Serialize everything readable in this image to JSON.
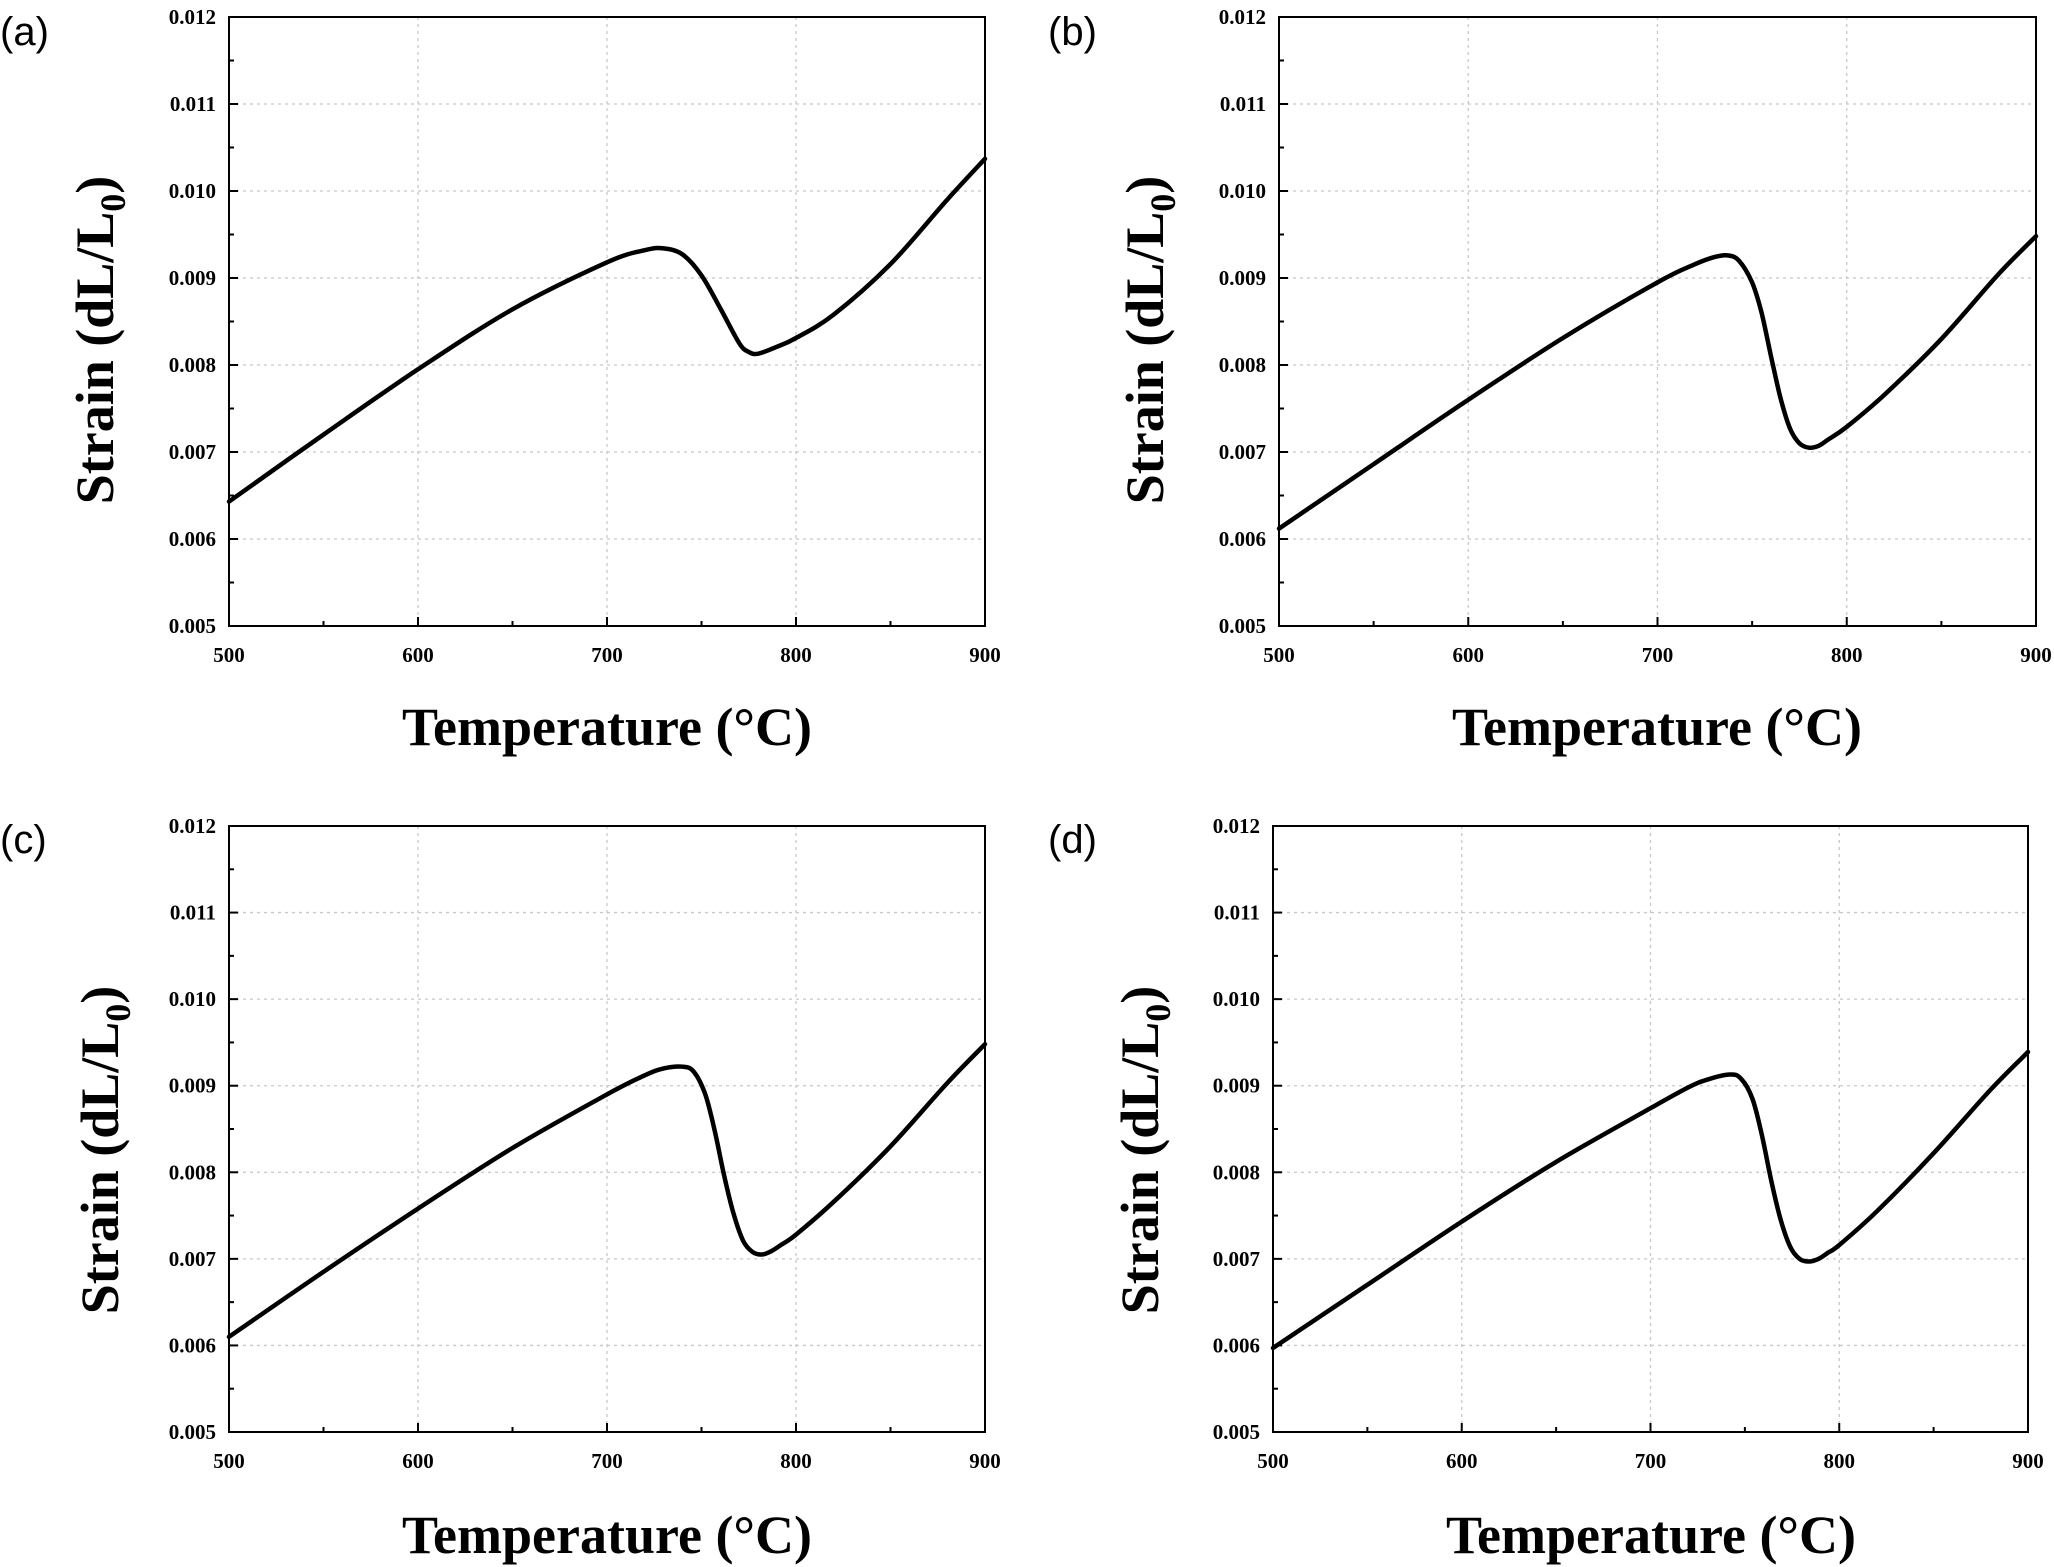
{
  "chart_data": [
    {
      "panel": "(a)",
      "type": "line",
      "xlabel": "Temperature (°C)",
      "ylabel": "Strain (dL/L",
      "ylabel_sub": "0",
      "ylabel_end": ")",
      "xlim": [
        500,
        900
      ],
      "ylim": [
        0.005,
        0.012
      ],
      "xticks": [
        "500",
        "600",
        "700",
        "800",
        "900"
      ],
      "yticks": [
        "0.005",
        "0.006",
        "0.007",
        "0.008",
        "0.009",
        "0.010",
        "0.011",
        "0.012"
      ],
      "grid": true,
      "x": [
        500,
        550,
        600,
        650,
        700,
        720,
        730,
        740,
        750,
        760,
        770,
        775,
        780,
        790,
        800,
        820,
        850,
        880,
        900
      ],
      "y": [
        0.00643,
        0.0072,
        0.00795,
        0.00864,
        0.00918,
        0.00932,
        0.00934,
        0.00927,
        0.00903,
        0.00865,
        0.00825,
        0.00815,
        0.00813,
        0.00821,
        0.00831,
        0.00858,
        0.00916,
        0.0099,
        0.01037
      ]
    },
    {
      "panel": "(b)",
      "type": "line",
      "xlabel": "Temperature (°C)",
      "ylabel": "Strain (dL/L",
      "ylabel_sub": "0",
      "ylabel_end": ")",
      "xlim": [
        500,
        900
      ],
      "ylim": [
        0.005,
        0.012
      ],
      "xticks": [
        "500",
        "600",
        "700",
        "800",
        "900"
      ],
      "yticks": [
        "0.005",
        "0.006",
        "0.007",
        "0.008",
        "0.009",
        "0.010",
        "0.011",
        "0.012"
      ],
      "grid": true,
      "x": [
        500,
        550,
        600,
        650,
        700,
        720,
        730,
        737,
        743,
        750,
        755,
        760,
        765,
        770,
        775,
        780,
        785,
        790,
        800,
        820,
        850,
        880,
        900
      ],
      "y": [
        0.00612,
        0.00686,
        0.0076,
        0.00831,
        0.00895,
        0.00916,
        0.00924,
        0.00926,
        0.0092,
        0.00895,
        0.0086,
        0.0081,
        0.00762,
        0.00727,
        0.0071,
        0.00705,
        0.00707,
        0.00714,
        0.00729,
        0.00766,
        0.0083,
        0.00904,
        0.00948
      ]
    },
    {
      "panel": "(c)",
      "type": "line",
      "xlabel": "Temperature (°C)",
      "ylabel": "Strain (dL/L",
      "ylabel_sub": "0",
      "ylabel_end": ")",
      "xlim": [
        500,
        900
      ],
      "ylim": [
        0.005,
        0.012
      ],
      "xticks": [
        "500",
        "600",
        "700",
        "800",
        "900"
      ],
      "yticks": [
        "0.005",
        "0.006",
        "0.007",
        "0.008",
        "0.009",
        "0.010",
        "0.011",
        "0.012"
      ],
      "grid": true,
      "x": [
        500,
        550,
        600,
        650,
        700,
        720,
        730,
        740,
        746,
        752,
        757,
        762,
        767,
        772,
        777,
        782,
        787,
        792,
        800,
        820,
        850,
        880,
        900
      ],
      "y": [
        0.0061,
        0.00685,
        0.00758,
        0.00828,
        0.0089,
        0.00912,
        0.0092,
        0.00922,
        0.00916,
        0.0089,
        0.00848,
        0.00796,
        0.00752,
        0.00721,
        0.00708,
        0.00705,
        0.00709,
        0.00716,
        0.00728,
        0.00766,
        0.0083,
        0.00903,
        0.00948
      ]
    },
    {
      "panel": "(d)",
      "type": "line",
      "xlabel": "Temperature (°C)",
      "ylabel": "Strain (dL/L",
      "ylabel_sub": "0",
      "ylabel_end": ")",
      "xlim": [
        500,
        900
      ],
      "ylim": [
        0.005,
        0.012
      ],
      "xticks": [
        "500",
        "600",
        "700",
        "800",
        "900"
      ],
      "yticks": [
        "0.005",
        "0.006",
        "0.007",
        "0.008",
        "0.009",
        "0.010",
        "0.011",
        "0.012"
      ],
      "grid": true,
      "x": [
        500,
        550,
        600,
        650,
        700,
        720,
        730,
        742,
        748,
        754,
        759,
        764,
        769,
        774,
        779,
        784,
        789,
        794,
        800,
        820,
        850,
        880,
        900
      ],
      "y": [
        0.00597,
        0.0067,
        0.00743,
        0.00812,
        0.00874,
        0.00898,
        0.00907,
        0.00913,
        0.00908,
        0.00885,
        0.00843,
        0.0079,
        0.00745,
        0.00714,
        0.007,
        0.00697,
        0.007,
        0.00707,
        0.00716,
        0.00755,
        0.00822,
        0.00895,
        0.00939
      ]
    }
  ]
}
